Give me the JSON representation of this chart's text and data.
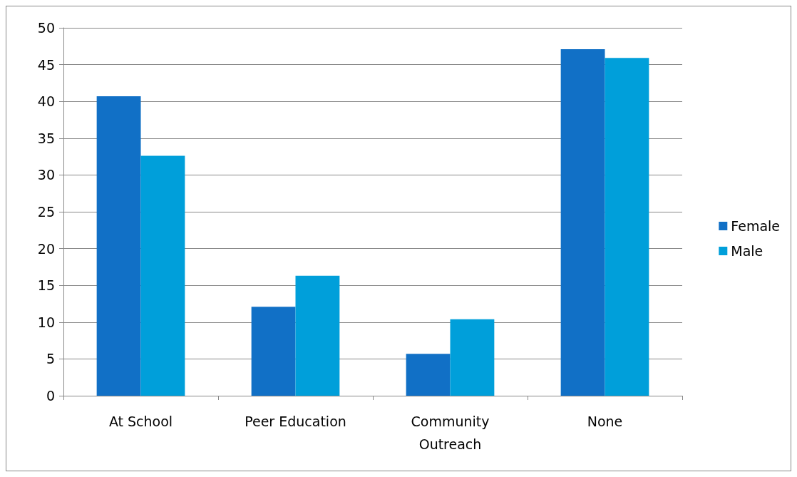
{
  "chart_data": {
    "type": "bar",
    "categories": [
      "At School",
      "Peer Education",
      "Community\nOutreach",
      "None"
    ],
    "series": [
      {
        "name": "Female",
        "color": "#1170c6",
        "values": [
          40.7,
          12.1,
          5.7,
          47.1
        ]
      },
      {
        "name": "Male",
        "color": "#009fda",
        "values": [
          32.6,
          16.3,
          10.4,
          45.9
        ]
      }
    ],
    "ylim": [
      0,
      50
    ],
    "yticks": [
      0,
      5,
      10,
      15,
      20,
      25,
      30,
      35,
      40,
      45,
      50
    ],
    "grid": "y",
    "legend": "right"
  }
}
